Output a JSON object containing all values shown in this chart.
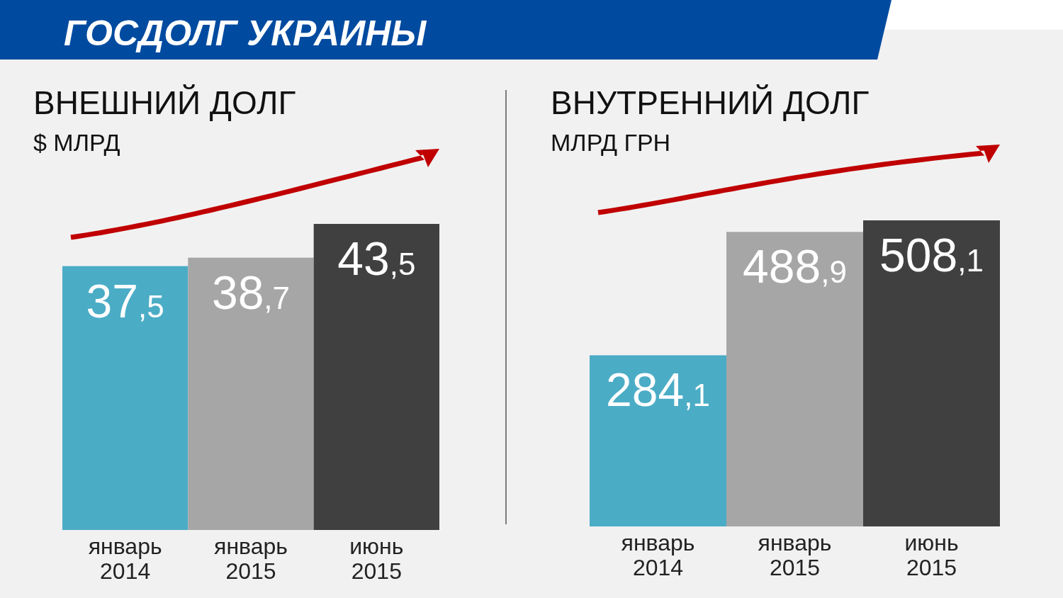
{
  "chart_data": [
    {
      "type": "bar",
      "annotations": [
        "ГОСДОЛГ УКРАИНЫ"
      ],
      "title": "ВНЕШНИЙ ДОЛГ",
      "subtitle": "$ МЛРД",
      "categories": [
        "январь 2014",
        "январь 2015",
        "июнь 2015"
      ],
      "values": [
        37.5,
        38.7,
        43.5
      ],
      "colors": [
        "#4bacc6",
        "#a6a6a6",
        "#404040"
      ],
      "value_labels": [
        "37,5",
        "38,7",
        "43,5"
      ]
    },
    {
      "type": "bar",
      "title": "ВНУТРЕННИЙ ДОЛГ",
      "subtitle": "МЛРД ГРН",
      "categories": [
        "январь 2014",
        "январь 2015",
        "июнь 2015"
      ],
      "values": [
        284.1,
        488.9,
        508.1
      ],
      "colors": [
        "#4bacc6",
        "#a6a6a6",
        "#404040"
      ],
      "value_labels": [
        "284,1",
        "488,9",
        "508,1"
      ]
    }
  ]
}
